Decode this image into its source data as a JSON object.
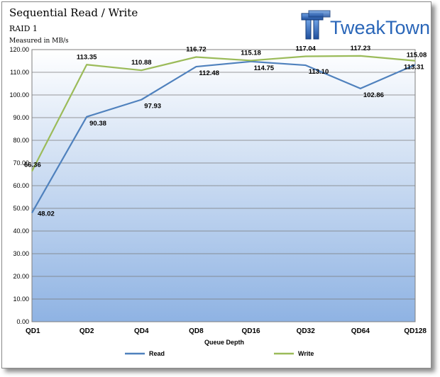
{
  "chart_data": {
    "type": "line",
    "title": "Sequential Read / Write",
    "subtitle": "RAID 1",
    "unit_label": "Measured in MB/s",
    "xlabel": "Queue Depth",
    "ylabel": "",
    "ylim": [
      0,
      120
    ],
    "yticks": [
      "0.00",
      "10.00",
      "20.00",
      "30.00",
      "40.00",
      "50.00",
      "60.00",
      "70.00",
      "80.00",
      "90.00",
      "100.00",
      "110.00",
      "120.00"
    ],
    "categories": [
      "QD1",
      "QD2",
      "QD4",
      "QD8",
      "QD16",
      "QD32",
      "QD64",
      "QD128"
    ],
    "series": [
      {
        "name": "Read",
        "color": "#4f81bd",
        "values": [
          48.02,
          90.38,
          97.93,
          112.48,
          114.75,
          113.1,
          102.86,
          113.31
        ],
        "labels": [
          "48.02",
          "90.38",
          "97.93",
          "112.48",
          "114.75",
          "113.10",
          "102.86",
          "113.31"
        ]
      },
      {
        "name": "Write",
        "color": "#9bbb59",
        "values": [
          66.36,
          113.35,
          110.88,
          116.72,
          115.18,
          117.04,
          117.23,
          115.08
        ],
        "labels": [
          "66.36",
          "113.35",
          "110.88",
          "116.72",
          "115.18",
          "117.04",
          "117.23",
          "115.08"
        ]
      }
    ],
    "legend_position": "bottom",
    "grid": true
  },
  "logo": {
    "text": "TweakTown",
    "color": "#2a66b8"
  }
}
